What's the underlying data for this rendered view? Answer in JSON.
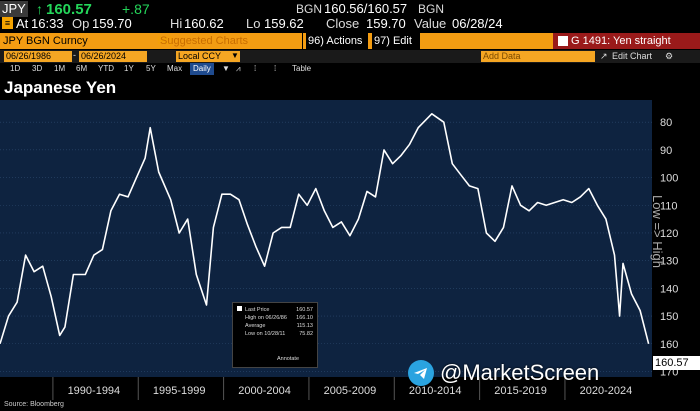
{
  "header": {
    "ticker": "JPY",
    "last": "160.57",
    "change": "+.87",
    "source_top": "BGN",
    "bid_ask": "160.56/160.57",
    "source_top2": "BGN",
    "at_label": "At",
    "time": "16:33",
    "op_label": "Op",
    "open": "159.70",
    "hi_label": "Hi",
    "high": "160.62",
    "lo_label": "Lo",
    "low": "159.62",
    "close_label": "Close",
    "close": "159.70",
    "value_label": "Value",
    "value_date": "06/28/24"
  },
  "toolbar": {
    "security": "JPY BGN Curncy",
    "suggested": "Suggested Charts",
    "suggested_key": "96)",
    "actions_key": "96)",
    "actions": "Actions",
    "edit_key": "97)",
    "edit": "Edit",
    "chart_id": "G 1491: Yen straight"
  },
  "range": {
    "start": "06/26/1986",
    "end": "06/26/2024",
    "currency": "Local CCY",
    "add_data": "Add Data",
    "edit_chart": "Edit Chart"
  },
  "periods": [
    "1D",
    "3D",
    "1M",
    "6M",
    "YTD",
    "1Y",
    "5Y",
    "Max"
  ],
  "freq": "Daily",
  "table_label": "Table",
  "title": "Japanese Yen",
  "legend": {
    "last_price_label": "Last Price",
    "last_price": "160.57",
    "high_label": "High on 06/26/86",
    "high": "166.10",
    "avg_label": "Average",
    "avg": "115.13",
    "low_label": "Low on 10/28/11",
    "low": "75.82",
    "annotate": "Annotate"
  },
  "last_tag": "160.57",
  "axis_title": "Low => High",
  "watermark": "@MarketScreen",
  "source": "Source: Bloomberg",
  "chart_data": {
    "type": "line",
    "title": "Japanese Yen",
    "y_axis_inverted": true,
    "ylim": [
      72,
      172
    ],
    "yticks": [
      80,
      90,
      100,
      110,
      120,
      130,
      140,
      150,
      160,
      170
    ],
    "xlabels": [
      "1990-1994",
      "1995-1999",
      "2000-2004",
      "2005-2009",
      "2010-2014",
      "2015-2019",
      "2020-2024"
    ],
    "x": [
      1986.5,
      1987.0,
      1987.5,
      1988.0,
      1988.5,
      1989.0,
      1989.5,
      1990.0,
      1990.3,
      1990.8,
      1991.5,
      1992.0,
      1992.5,
      1993.0,
      1993.5,
      1994.0,
      1994.5,
      1995.0,
      1995.3,
      1995.8,
      1996.5,
      1997.0,
      1997.5,
      1998.0,
      1998.6,
      1999.0,
      1999.5,
      2000.0,
      2000.5,
      2001.0,
      2001.5,
      2002.0,
      2002.5,
      2003.0,
      2003.5,
      2004.0,
      2004.5,
      2005.0,
      2005.5,
      2006.0,
      2006.5,
      2007.0,
      2007.5,
      2008.0,
      2008.5,
      2009.0,
      2009.5,
      2010.0,
      2010.5,
      2011.0,
      2011.8,
      2012.5,
      2013.0,
      2013.5,
      2014.0,
      2014.5,
      2015.0,
      2015.5,
      2016.0,
      2016.5,
      2017.0,
      2017.5,
      2018.0,
      2018.5,
      2019.0,
      2019.5,
      2020.0,
      2020.5,
      2021.0,
      2021.5,
      2022.0,
      2022.5,
      2022.8,
      2023.0,
      2023.5,
      2024.0,
      2024.5
    ],
    "y": [
      160,
      150,
      145,
      128,
      134,
      132,
      143,
      157,
      154,
      135,
      135,
      128,
      126,
      112,
      106,
      107,
      100,
      93,
      82,
      98,
      108,
      120,
      115,
      135,
      146,
      118,
      106,
      106,
      108,
      117,
      125,
      132,
      120,
      118,
      118,
      106,
      110,
      104,
      112,
      118,
      116,
      121,
      115,
      105,
      107,
      90,
      95,
      92,
      88,
      82,
      77,
      80,
      95,
      99,
      103,
      104,
      120,
      123,
      118,
      103,
      110,
      112,
      109,
      110,
      109,
      108,
      109,
      107,
      104,
      110,
      115,
      128,
      150,
      131,
      142,
      148,
      160
    ]
  }
}
